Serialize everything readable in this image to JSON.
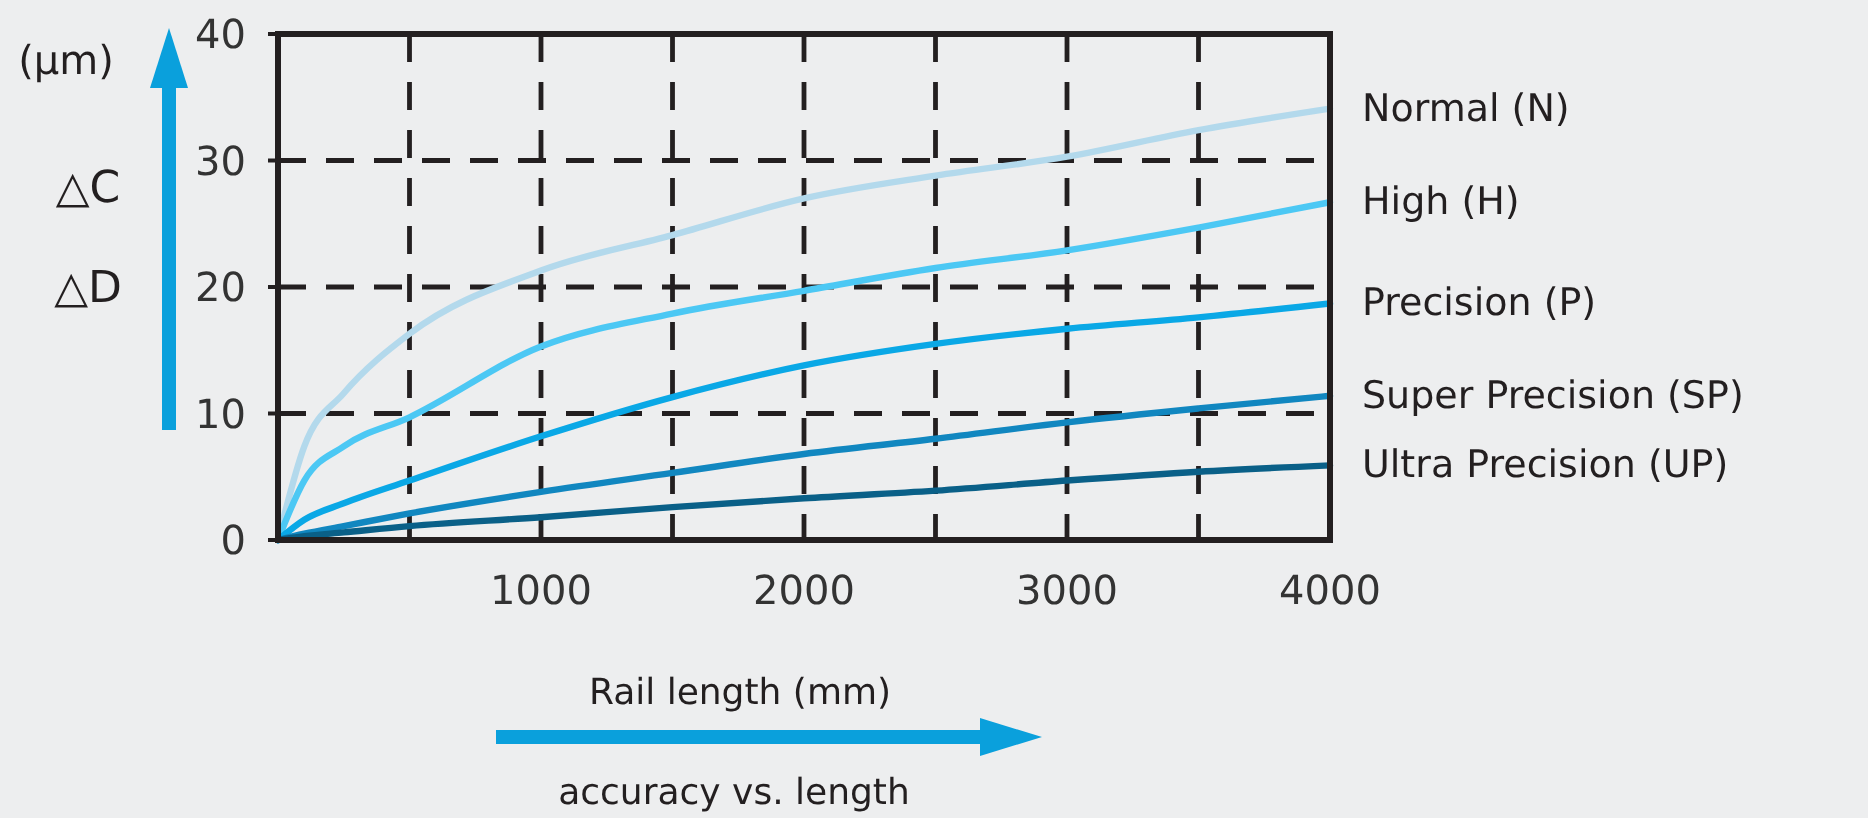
{
  "chart_data": {
    "type": "line",
    "title": "accuracy vs. length",
    "xlabel": "Rail length (mm)",
    "ylabel": "(μm)",
    "annotations": [
      "△C",
      "△D"
    ],
    "x": [
      0,
      100,
      250,
      500,
      1000,
      1500,
      2000,
      2500,
      3000,
      3500,
      4000
    ],
    "series": [
      {
        "name": "Normal (N)",
        "color": "#b3d9ec",
        "values": [
          0,
          7.4,
          11.6,
          16.3,
          21.3,
          24.1,
          27,
          28.8,
          30.3,
          32.4,
          34.1
        ]
      },
      {
        "name": "High (H)",
        "color": "#4cc8f4",
        "values": [
          0,
          4.7,
          7.4,
          9.7,
          15.3,
          17.9,
          19.7,
          21.5,
          22.9,
          24.7,
          26.7
        ]
      },
      {
        "name": "Precision (P)",
        "color": "#0aa8e6",
        "values": [
          0,
          1.6,
          2.9,
          4.7,
          8.2,
          11.3,
          13.8,
          15.5,
          16.7,
          17.6,
          18.7
        ]
      },
      {
        "name": "Super Precision (SP)",
        "color": "#1187c0",
        "values": [
          0,
          0.5,
          1.1,
          2.1,
          3.8,
          5.3,
          6.8,
          8,
          9.3,
          10.4,
          11.4
        ]
      },
      {
        "name": "Ultra Precision (UP)",
        "color": "#0a6088",
        "values": [
          0,
          0.3,
          0.6,
          1.1,
          1.8,
          2.6,
          3.3,
          3.9,
          4.7,
          5.4,
          5.9
        ]
      }
    ],
    "xlim": [
      0,
      4000
    ],
    "xticks": [
      {
        "value": 500,
        "label": null
      },
      1000,
      {
        "value": 1500,
        "label": null
      },
      2000,
      {
        "value": 2500,
        "label": null
      },
      3000,
      {
        "value": 3500,
        "label": null
      },
      4000
    ],
    "ylim": [
      0,
      40
    ],
    "yticks": [
      0,
      10,
      20,
      30,
      40
    ],
    "grid": true,
    "line_style": "solid",
    "marker": "none"
  }
}
